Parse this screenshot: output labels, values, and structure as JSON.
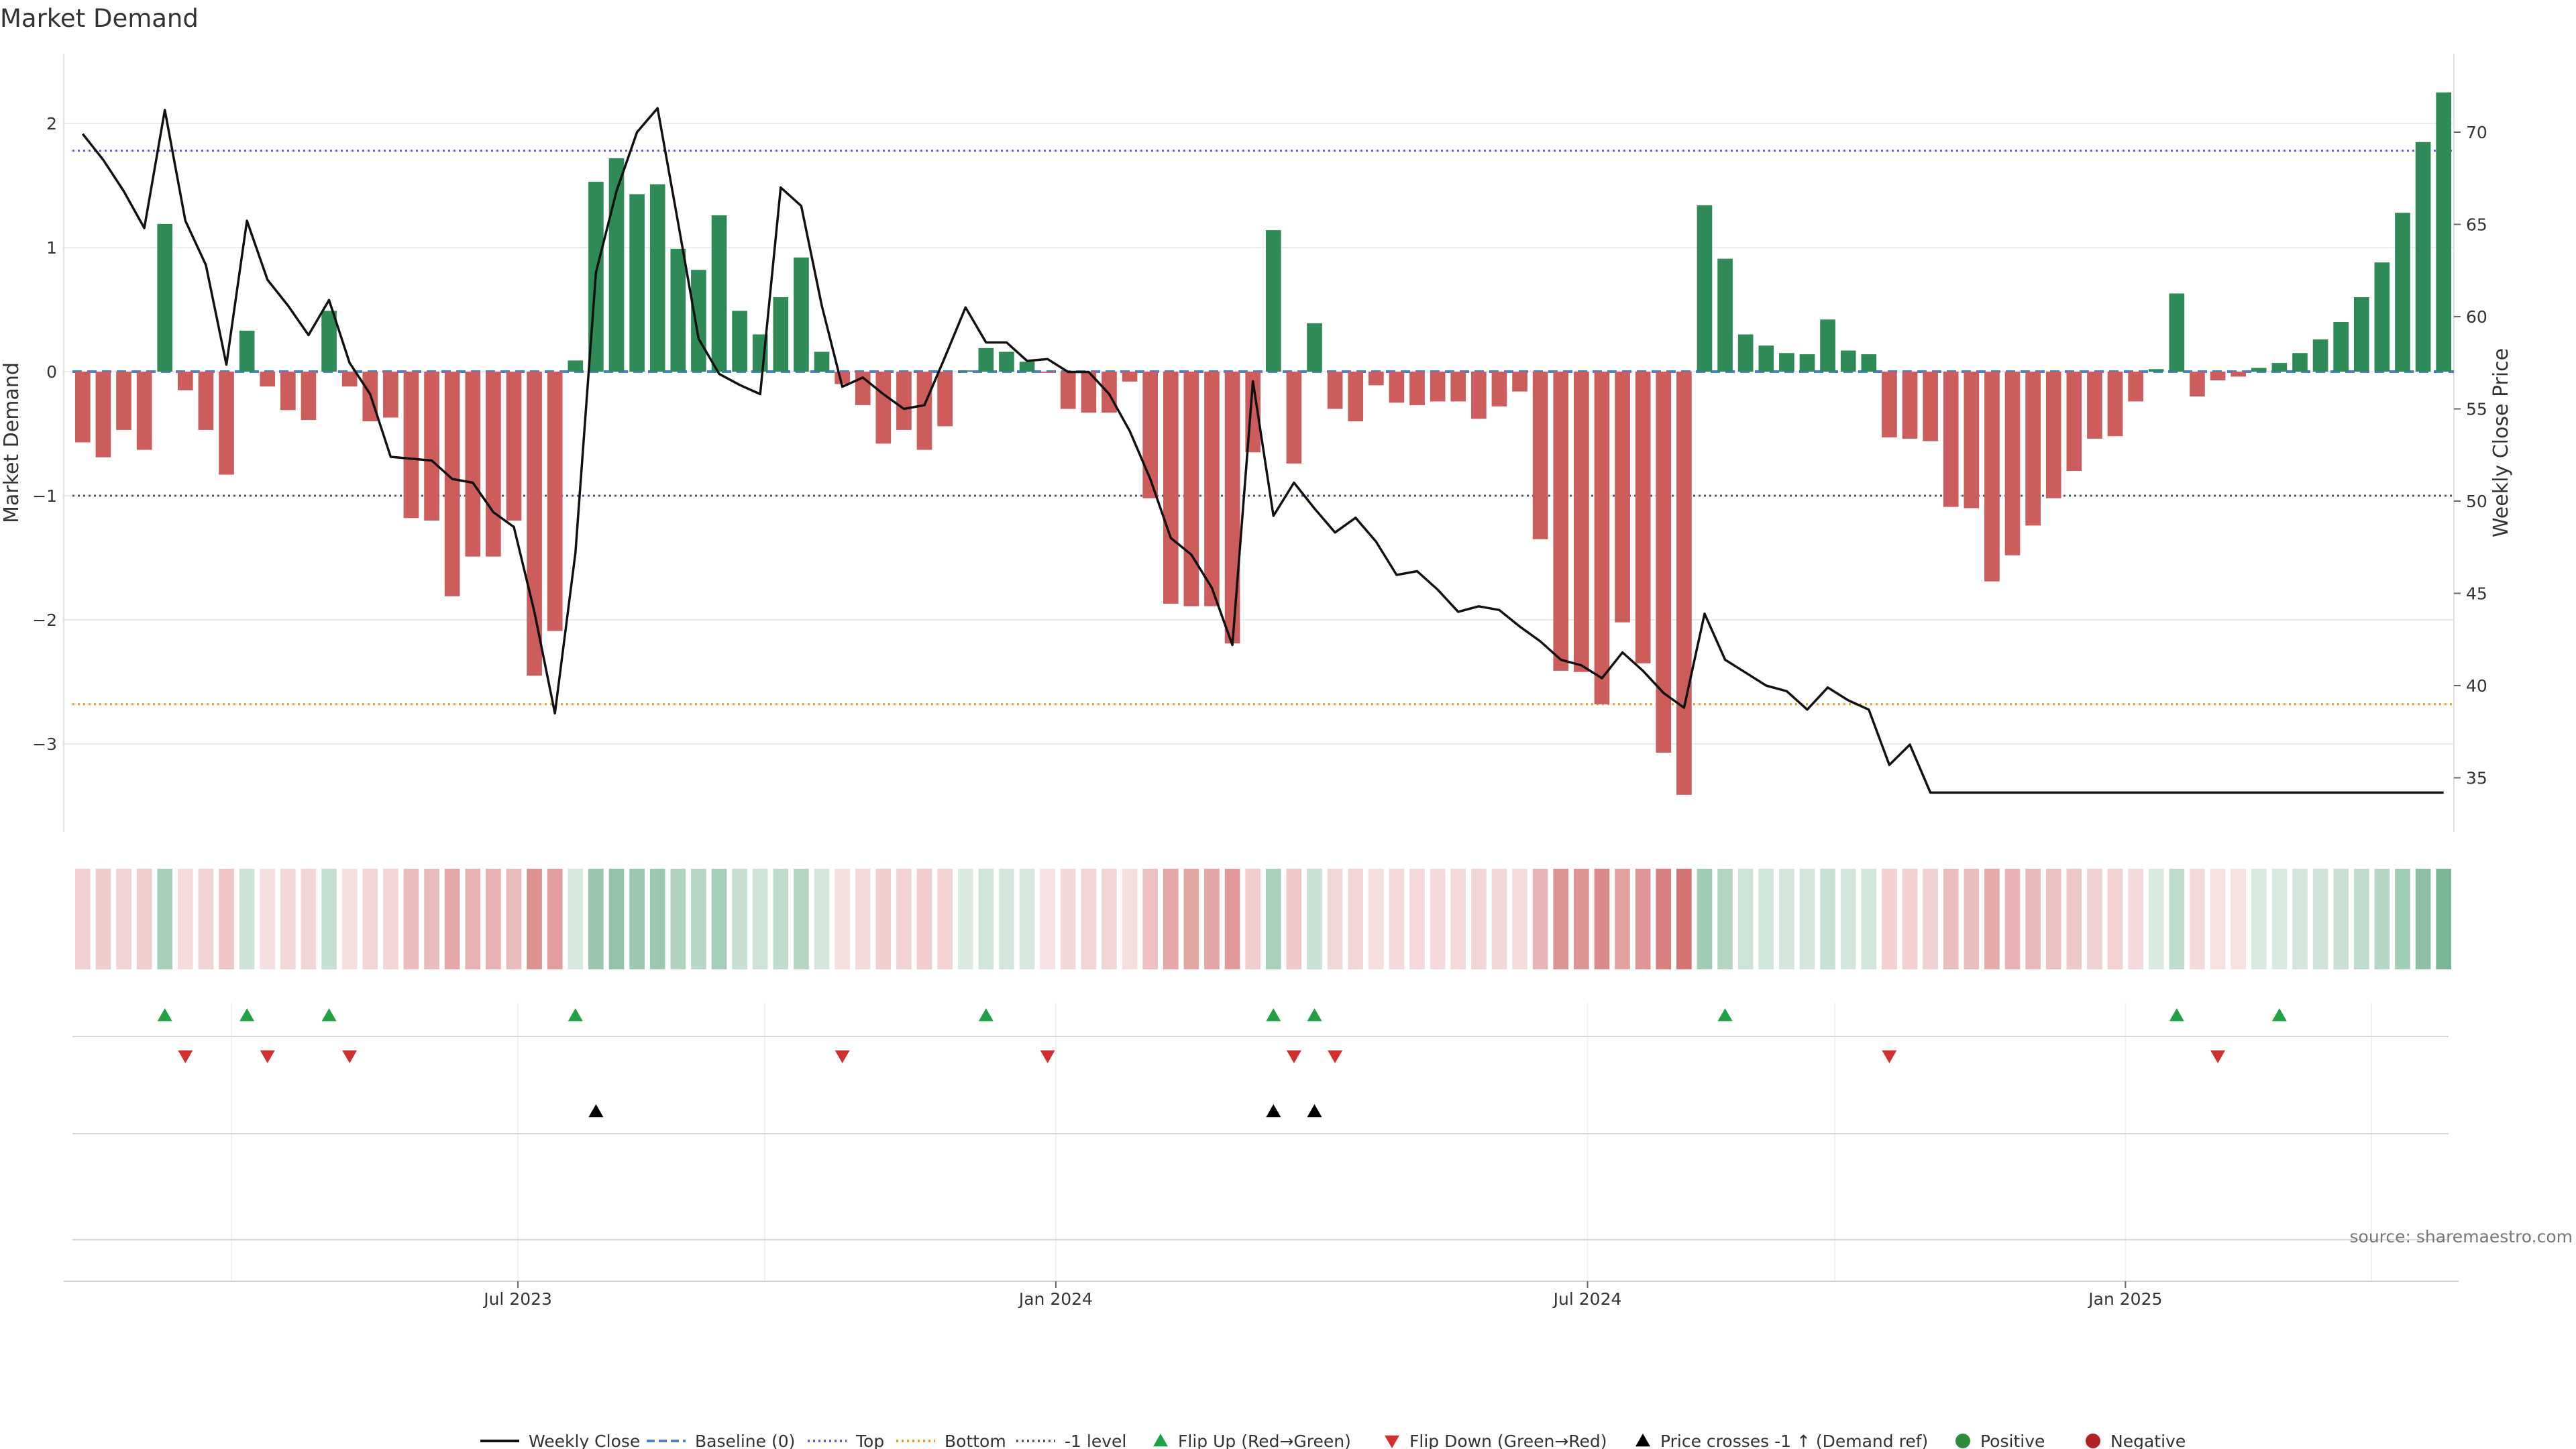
{
  "chart_data": {
    "type": "bar",
    "title": "Market Demand",
    "ylabel": "Market Demand",
    "y2label": "Weekly Close Price",
    "source": "source: sharemaestro.com",
    "ylim": [
      -3.7,
      2.5
    ],
    "y_ticks": [
      2,
      1,
      0,
      -1,
      -2,
      -3
    ],
    "y_tick_labels": [
      "2",
      "1",
      "0",
      "−1",
      "−2",
      "−3"
    ],
    "y2lim": [
      32,
      74
    ],
    "y2_ticks": [
      70,
      65,
      60,
      55,
      50,
      45,
      40,
      35
    ],
    "x_tick_labels": [
      {
        "label": "Jul 2023",
        "index": 21.2
      },
      {
        "label": "Jan 2024",
        "index": 47.4
      },
      {
        "label": "Jul 2024",
        "index": 73.3
      },
      {
        "label": "Jan 2025",
        "index": 99.5
      }
    ],
    "reference_lines": {
      "baseline": 0,
      "top": 1.78,
      "bottom": -2.68,
      "minus_one": -1
    },
    "demand": [
      -0.57,
      -0.69,
      -0.47,
      -0.63,
      1.19,
      -0.15,
      -0.47,
      -0.83,
      0.33,
      -0.12,
      -0.31,
      -0.39,
      0.49,
      -0.12,
      -0.4,
      -0.37,
      -1.18,
      -1.2,
      -1.81,
      -1.49,
      -1.49,
      -1.2,
      -2.45,
      -2.09,
      0.09,
      1.53,
      1.72,
      1.43,
      1.51,
      0.99,
      0.82,
      1.26,
      0.49,
      0.3,
      0.6,
      0.92,
      0.16,
      -0.1,
      -0.27,
      -0.58,
      -0.47,
      -0.63,
      -0.44,
      0.01,
      0.19,
      0.16,
      0.08,
      -0.01,
      -0.3,
      -0.33,
      -0.33,
      -0.08,
      -1.02,
      -1.87,
      -1.89,
      -1.89,
      -2.19,
      -0.65,
      1.14,
      -0.74,
      0.39,
      -0.3,
      -0.4,
      -0.11,
      -0.25,
      -0.27,
      -0.24,
      -0.24,
      -0.38,
      -0.28,
      -0.16,
      -1.35,
      -2.41,
      -2.42,
      -2.68,
      -2.02,
      -2.35,
      -3.07,
      -3.41,
      1.34,
      0.91,
      0.3,
      0.21,
      0.15,
      0.14,
      0.42,
      0.17,
      0.14,
      -0.53,
      -0.54,
      -0.56,
      -1.09,
      -1.1,
      -1.69,
      -1.48,
      -1.24,
      -1.02,
      -0.8,
      -0.54,
      -0.52,
      -0.24,
      0.02,
      0.63,
      -0.2,
      -0.07,
      -0.04,
      0.03,
      0.07,
      0.15,
      0.26,
      0.4,
      0.6,
      0.88,
      1.28,
      1.85,
      2.25
    ],
    "close": [
      69.9,
      68.5,
      66.8,
      64.8,
      71.2,
      65.2,
      62.8,
      57.4,
      65.2,
      62.0,
      60.6,
      59.0,
      60.9,
      57.5,
      55.8,
      52.4,
      52.3,
      52.2,
      51.2,
      51.0,
      49.4,
      48.6,
      44.0,
      38.5,
      47.2,
      62.4,
      66.8,
      70.0,
      71.3,
      65.1,
      58.8,
      56.9,
      56.3,
      55.8,
      67.0,
      66.0,
      60.6,
      56.2,
      56.7,
      55.8,
      55.0,
      55.2,
      57.8,
      60.5,
      58.6,
      58.6,
      57.6,
      57.7,
      57.0,
      57.0,
      55.8,
      53.8,
      51.2,
      48.0,
      47.1,
      45.3,
      42.2,
      56.5,
      49.2,
      51.0,
      49.6,
      48.3,
      49.1,
      47.8,
      46.0,
      46.2,
      45.2,
      44.0,
      44.3,
      44.1,
      43.2,
      42.4,
      41.4,
      41.1,
      40.4,
      41.8,
      40.8,
      39.6,
      38.8,
      43.9,
      41.4,
      40.7,
      40.0,
      39.7,
      38.7,
      39.9,
      39.2,
      38.7,
      35.7,
      36.8,
      34.2,
      34.2,
      34.2,
      34.2,
      34.2,
      34.2,
      34.2,
      34.2,
      34.2,
      34.2,
      34.2,
      34.2,
      34.2,
      34.2,
      34.2,
      34.2,
      34.2,
      34.2,
      34.2,
      34.2,
      34.2,
      34.2,
      34.2,
      34.2,
      34.2,
      34.2
    ],
    "flip_up_indices": [
      4,
      8,
      12,
      24,
      44,
      58,
      60,
      80,
      102,
      107
    ],
    "flip_down_indices": [
      5,
      9,
      13,
      37,
      47,
      59,
      61,
      88,
      104
    ],
    "price_cross_indices": [
      25,
      58,
      60
    ],
    "legend": [
      {
        "label": "Weekly Close",
        "marker": "line-solid",
        "color": "#111111"
      },
      {
        "label": "Baseline (0)",
        "marker": "line-dashed",
        "color": "#4a7fc1"
      },
      {
        "label": "Top",
        "marker": "line-dotted",
        "color": "#6a5acd"
      },
      {
        "label": "Bottom",
        "marker": "line-dotted",
        "color": "#e0a020"
      },
      {
        "label": "-1 level",
        "marker": "line-dotted",
        "color": "#555577"
      },
      {
        "label": "Flip Up (Red→Green)",
        "marker": "triangle-up",
        "color": "#22a046"
      },
      {
        "label": "Flip Down (Green→Red)",
        "marker": "triangle-down",
        "color": "#d03030"
      },
      {
        "label": "Price crosses -1 ↑ (Demand ref)",
        "marker": "triangle-up",
        "color": "#000000"
      },
      {
        "label": "Positive",
        "marker": "circle",
        "color": "#2e8b3e"
      },
      {
        "label": "Negative",
        "marker": "circle",
        "color": "#b22222"
      }
    ],
    "colors": {
      "positive": "#2e8b57",
      "negative": "#cd5c5c",
      "flip_up": "#22a046",
      "flip_down": "#d03030",
      "cross": "#000000",
      "close_line": "#111111"
    },
    "grid": true,
    "legend_position": "bottom"
  }
}
